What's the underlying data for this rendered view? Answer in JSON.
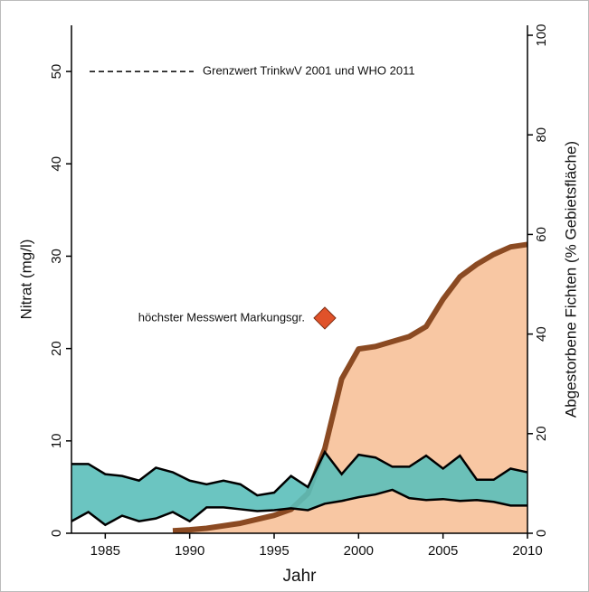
{
  "chart_data": {
    "type": "band",
    "x": [
      1983,
      1984,
      1985,
      1986,
      1987,
      1988,
      1989,
      1990,
      1991,
      1992,
      1993,
      1994,
      1995,
      1996,
      1997,
      1998,
      1999,
      2000,
      2001,
      2002,
      2003,
      2004,
      2005,
      2006,
      2007,
      2008,
      2009,
      2010
    ],
    "xlim": [
      1983,
      2010
    ],
    "xticks": [
      1985,
      1990,
      1995,
      2000,
      2005,
      2010
    ],
    "ylim": [
      0,
      55
    ],
    "yticks": [
      0,
      10,
      20,
      30,
      40,
      50
    ],
    "y2lim": [
      0,
      102
    ],
    "y2ticks": [
      0,
      20,
      40,
      60,
      80,
      100
    ],
    "xlabel": "Jahr",
    "ylabel": "Nitrat (mg/l)",
    "y2label": "Abgestorbene Fichten (% Gebietsfläche)",
    "band": {
      "color": "#5bbfba",
      "upper": [
        7.5,
        7.5,
        6.4,
        6.2,
        5.7,
        7.1,
        6.6,
        5.7,
        5.3,
        5.7,
        5.3,
        4.1,
        4.4,
        6.2,
        5.0,
        8.8,
        6.4,
        8.5,
        8.2,
        7.2,
        7.2,
        8.4,
        7.0,
        8.4,
        5.8,
        5.8,
        7.0,
        6.6
      ],
      "lower": [
        1.3,
        2.3,
        0.9,
        1.9,
        1.3,
        1.6,
        2.3,
        1.3,
        2.8,
        2.8,
        2.6,
        2.4,
        2.5,
        2.7,
        2.5,
        3.2,
        3.5,
        3.9,
        4.2,
        4.7,
        3.8,
        3.6,
        3.7,
        3.5,
        3.6,
        3.4,
        3.0,
        3.0
      ]
    },
    "series": [
      {
        "color": "#8b4a22",
        "fill": "#f8c7a3",
        "axis": "y2",
        "values": [
          null,
          null,
          null,
          null,
          null,
          null,
          0.5,
          0.7,
          1,
          1.5,
          2,
          2.8,
          3.6,
          4.8,
          8,
          17,
          31,
          37,
          37.5,
          38.5,
          39.5,
          41.5,
          47,
          51.5,
          54,
          56,
          57.5,
          58
        ]
      }
    ],
    "threshold": {
      "value": 50,
      "label": "Grenzwert TrinkwV 2001 und WHO 2011"
    },
    "marker": {
      "x": 1998,
      "y": 23.3,
      "label": "höchster Messwert Markungsgr.",
      "color": "#e0522a"
    }
  }
}
